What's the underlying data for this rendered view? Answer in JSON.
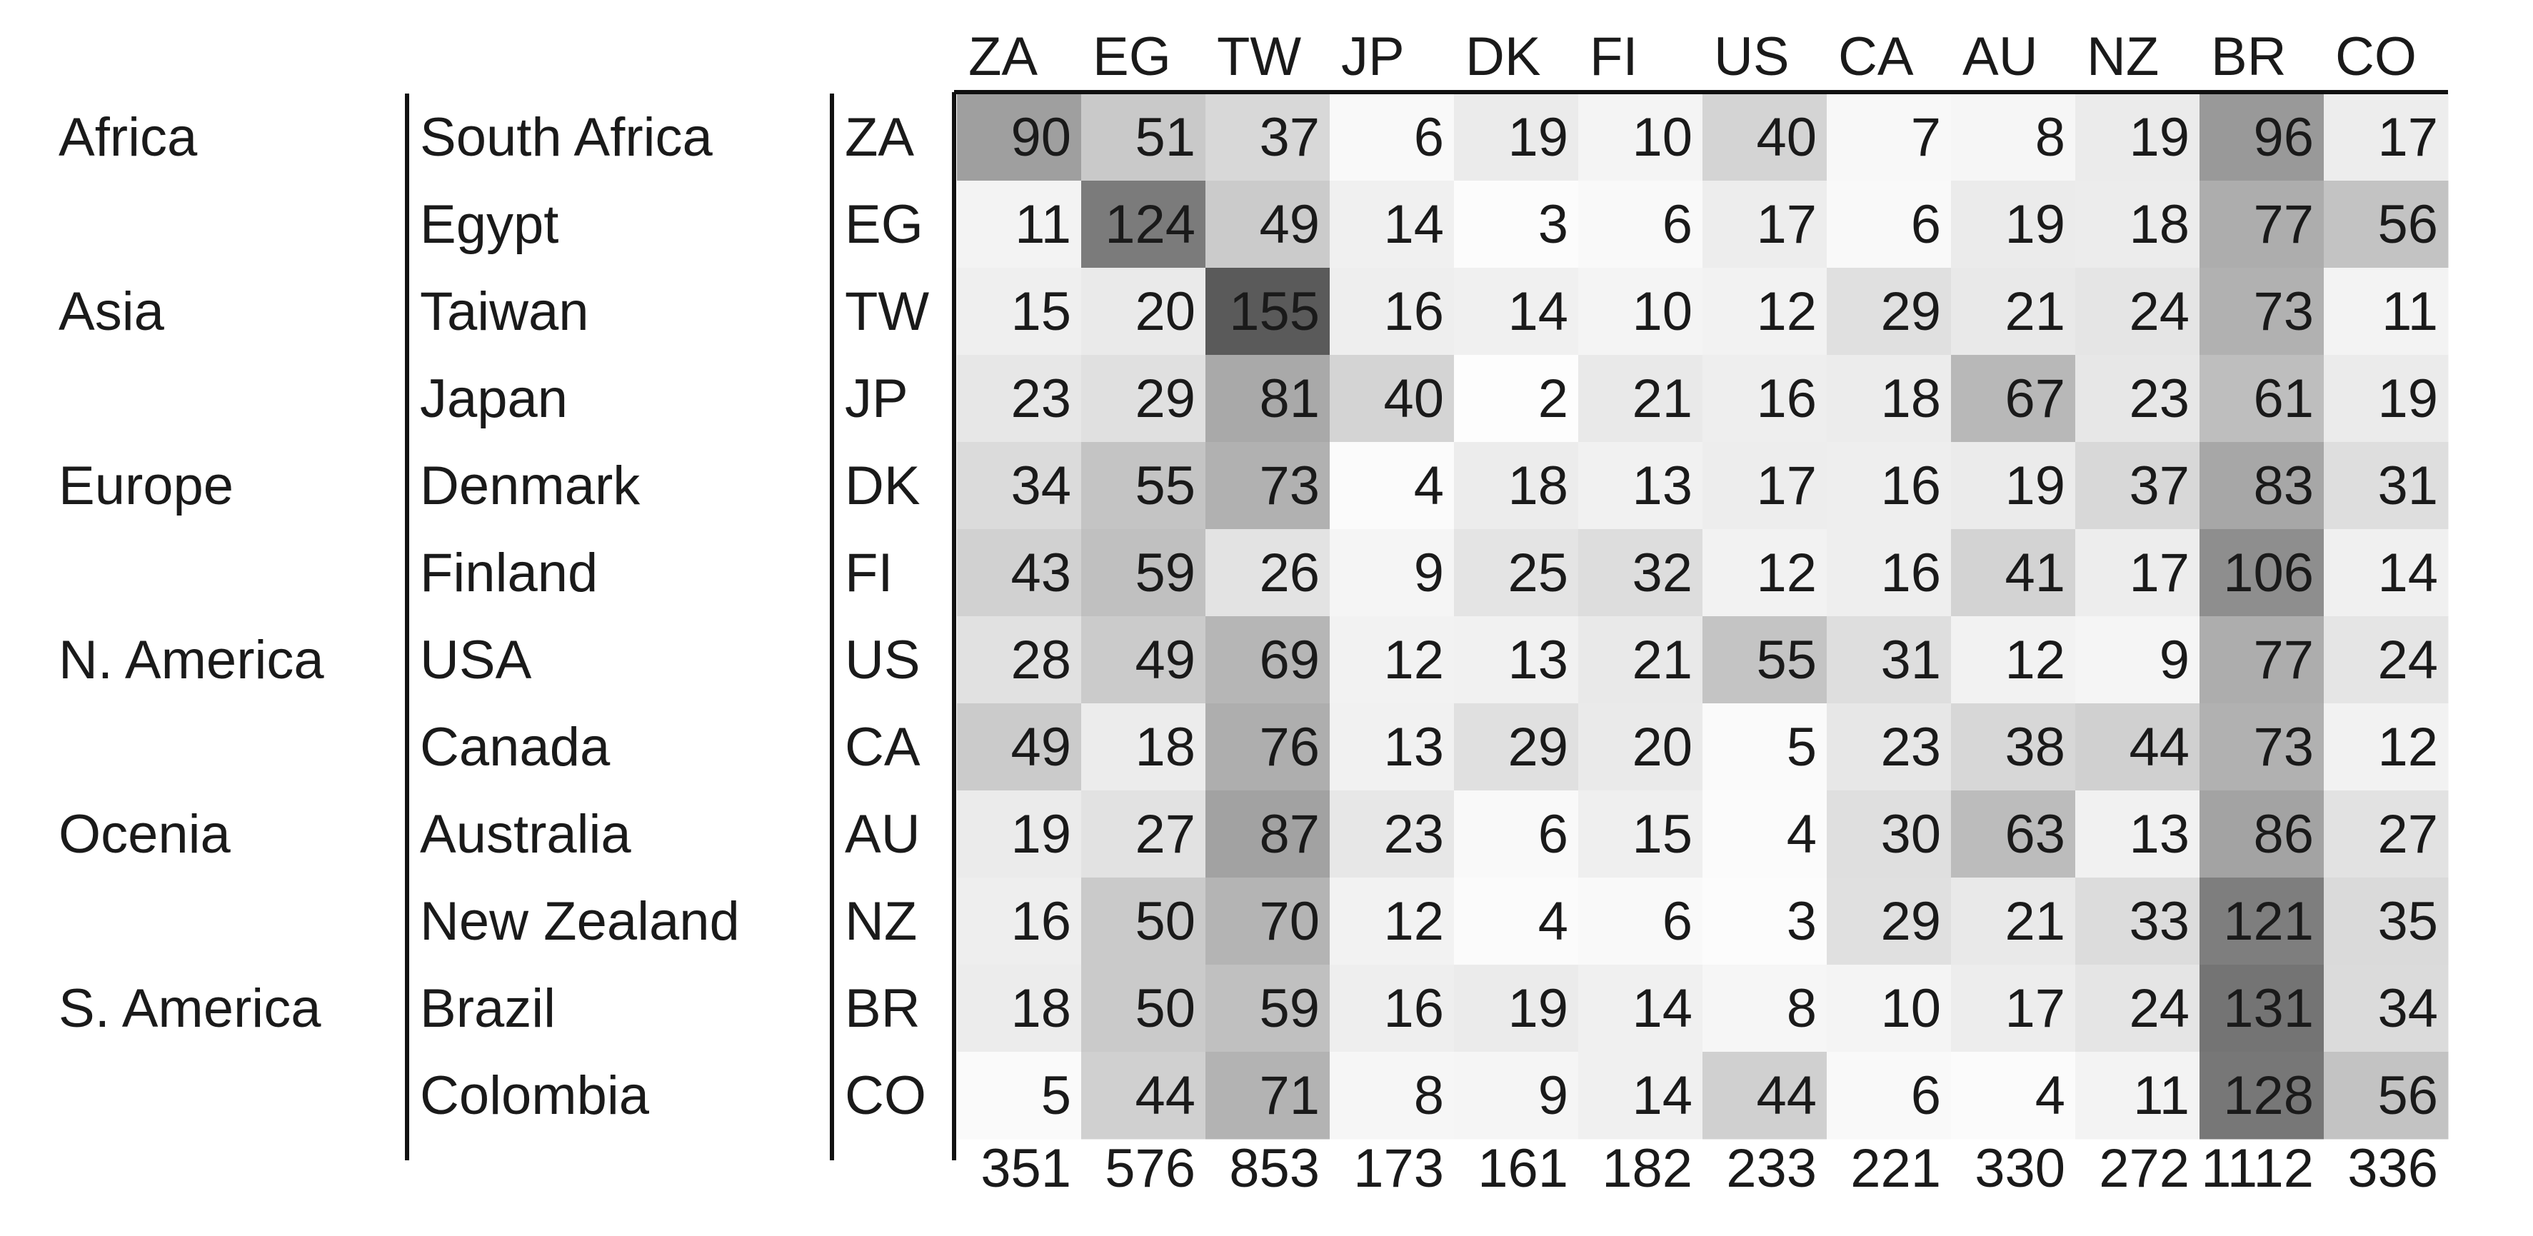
{
  "chart_data": {
    "type": "heatmap",
    "title": "",
    "xlabel": "",
    "ylabel": "",
    "columns": [
      "ZA",
      "EG",
      "TW",
      "JP",
      "DK",
      "FI",
      "US",
      "CA",
      "AU",
      "NZ",
      "BR",
      "CO"
    ],
    "rows": [
      {
        "continent": "Africa",
        "country": "South Africa",
        "code": "ZA",
        "values": [
          90,
          51,
          37,
          6,
          19,
          10,
          40,
          7,
          8,
          19,
          96,
          17
        ]
      },
      {
        "continent": "",
        "country": "Egypt",
        "code": "EG",
        "values": [
          11,
          124,
          49,
          14,
          3,
          6,
          17,
          6,
          19,
          18,
          77,
          56
        ]
      },
      {
        "continent": "Asia",
        "country": "Taiwan",
        "code": "TW",
        "values": [
          15,
          20,
          155,
          16,
          14,
          10,
          12,
          29,
          21,
          24,
          73,
          11
        ]
      },
      {
        "continent": "",
        "country": "Japan",
        "code": "JP",
        "values": [
          23,
          29,
          81,
          40,
          2,
          21,
          16,
          18,
          67,
          23,
          61,
          19
        ]
      },
      {
        "continent": "Europe",
        "country": "Denmark",
        "code": "DK",
        "values": [
          34,
          55,
          73,
          4,
          18,
          13,
          17,
          16,
          19,
          37,
          83,
          31
        ]
      },
      {
        "continent": "",
        "country": "Finland",
        "code": "FI",
        "values": [
          43,
          59,
          26,
          9,
          25,
          32,
          12,
          16,
          41,
          17,
          106,
          14
        ]
      },
      {
        "continent": "N. America",
        "country": "USA",
        "code": "US",
        "values": [
          28,
          49,
          69,
          12,
          13,
          21,
          55,
          31,
          12,
          9,
          77,
          24
        ]
      },
      {
        "continent": "",
        "country": "Canada",
        "code": "CA",
        "values": [
          49,
          18,
          76,
          13,
          29,
          20,
          5,
          23,
          38,
          44,
          73,
          12
        ]
      },
      {
        "continent": "Ocenia",
        "country": "Australia",
        "code": "AU",
        "values": [
          19,
          27,
          87,
          23,
          6,
          15,
          4,
          30,
          63,
          13,
          86,
          27
        ]
      },
      {
        "continent": "",
        "country": "New Zealand",
        "code": "NZ",
        "values": [
          16,
          50,
          70,
          12,
          4,
          6,
          3,
          29,
          21,
          33,
          121,
          35
        ]
      },
      {
        "continent": "S. America",
        "country": "Brazil",
        "code": "BR",
        "values": [
          18,
          50,
          59,
          16,
          19,
          14,
          8,
          10,
          17,
          24,
          131,
          34
        ]
      },
      {
        "continent": "",
        "country": "Colombia",
        "code": "CO",
        "values": [
          5,
          44,
          71,
          8,
          9,
          14,
          44,
          6,
          4,
          11,
          128,
          56
        ]
      }
    ],
    "column_totals": [
      351,
      576,
      853,
      173,
      161,
      182,
      233,
      221,
      330,
      272,
      1112,
      336
    ],
    "color_min": "#ffffff",
    "color_max": "#5a5a5a",
    "value_range": [
      0,
      155
    ],
    "grid": false,
    "legend": "none"
  }
}
